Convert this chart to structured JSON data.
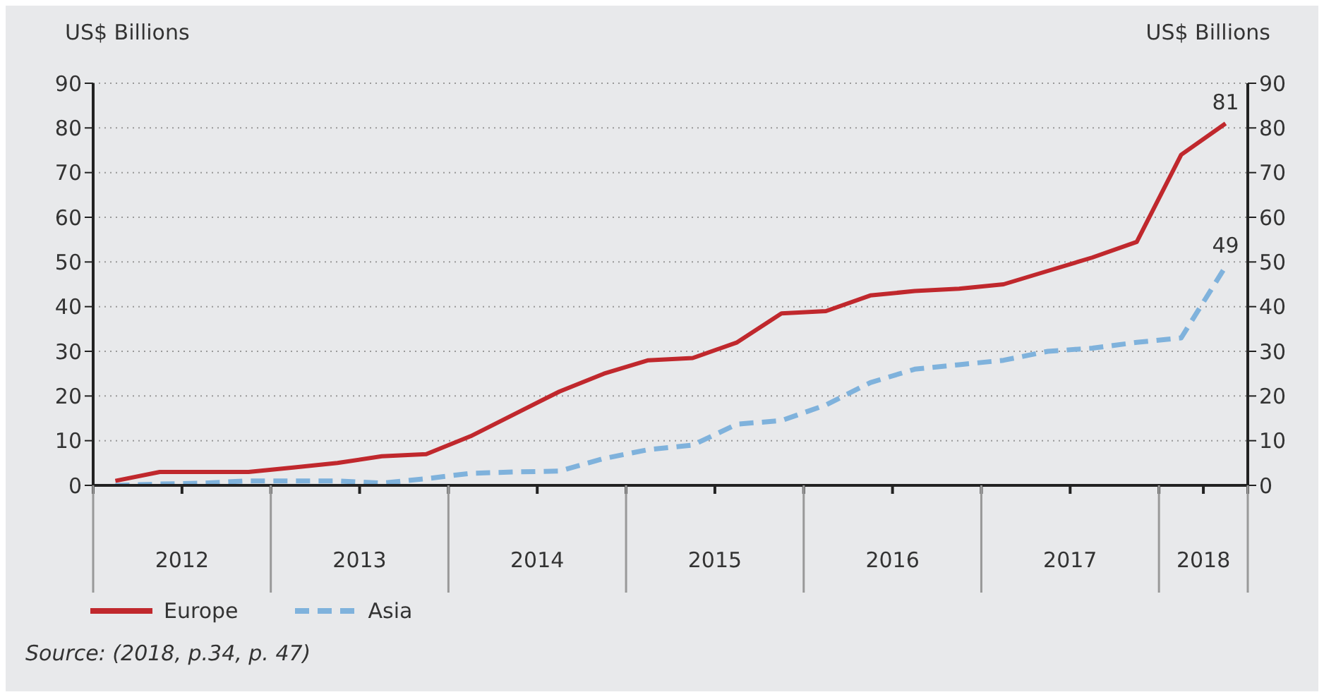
{
  "chart_data": {
    "type": "line",
    "ylabel": "US$ Billions",
    "y2label": "US$ Billions",
    "x": [
      2012.125,
      2012.375,
      2012.625,
      2012.875,
      2013.125,
      2013.375,
      2013.625,
      2013.875,
      2014.125,
      2014.375,
      2014.625,
      2014.875,
      2015.125,
      2015.375,
      2015.625,
      2015.875,
      2016.125,
      2016.375,
      2016.625,
      2016.875,
      2017.125,
      2017.375,
      2017.625,
      2017.875,
      2018.125,
      2018.375
    ],
    "xlim": [
      2012,
      2018.5
    ],
    "xticks": [
      {
        "value": 2012,
        "label": null
      },
      {
        "value": 2012.5,
        "label": "2012"
      },
      {
        "value": 2013,
        "label": null
      },
      {
        "value": 2013.5,
        "label": "2013"
      },
      {
        "value": 2014,
        "label": null
      },
      {
        "value": 2014.5,
        "label": "2014"
      },
      {
        "value": 2015,
        "label": null
      },
      {
        "value": 2015.5,
        "label": "2015"
      },
      {
        "value": 2016,
        "label": null
      },
      {
        "value": 2016.5,
        "label": "2016"
      },
      {
        "value": 2017,
        "label": null
      },
      {
        "value": 2017.5,
        "label": "2017"
      },
      {
        "value": 2018,
        "label": null
      },
      {
        "value": 2018.25,
        "label": "2018"
      },
      {
        "value": 2018.5,
        "label": null
      }
    ],
    "ylim": [
      0,
      90
    ],
    "yticks": [
      0,
      10,
      20,
      30,
      40,
      50,
      60,
      70,
      80,
      90
    ],
    "y2lim": [
      0,
      90
    ],
    "y2ticks": [
      0,
      10,
      20,
      30,
      40,
      50,
      60,
      70,
      80,
      90
    ],
    "series": [
      {
        "name": "Europe",
        "color": "#c0282d",
        "line_style": "solid",
        "values": [
          1,
          3,
          3,
          3,
          4,
          5,
          6.5,
          7,
          11,
          16,
          21,
          25,
          28,
          28.5,
          32,
          38.5,
          39,
          42.5,
          43.5,
          44,
          45,
          48,
          51,
          54.5,
          74,
          81
        ],
        "value_labels": [
          null,
          null,
          null,
          null,
          null,
          null,
          null,
          null,
          null,
          null,
          null,
          null,
          null,
          null,
          null,
          null,
          null,
          null,
          null,
          null,
          null,
          null,
          null,
          null,
          null,
          "81"
        ]
      },
      {
        "name": "Asia",
        "color": "#7fb2dc",
        "line_style": "dashed",
        "values": [
          0,
          0.3,
          0.5,
          1,
          1,
          1,
          0.5,
          1.5,
          2.7,
          3,
          3.2,
          6,
          8,
          9,
          13.7,
          14.5,
          18,
          23,
          26,
          27,
          28,
          30,
          30.7,
          32,
          33,
          49
        ],
        "value_labels": [
          null,
          null,
          null,
          null,
          null,
          null,
          null,
          null,
          null,
          null,
          null,
          null,
          null,
          null,
          null,
          null,
          null,
          null,
          null,
          null,
          null,
          null,
          null,
          null,
          null,
          "49"
        ]
      }
    ],
    "grid": "y",
    "legend": "bottom left",
    "annotations": [
      "Source: (2018, p.34, p. 47)"
    ]
  }
}
